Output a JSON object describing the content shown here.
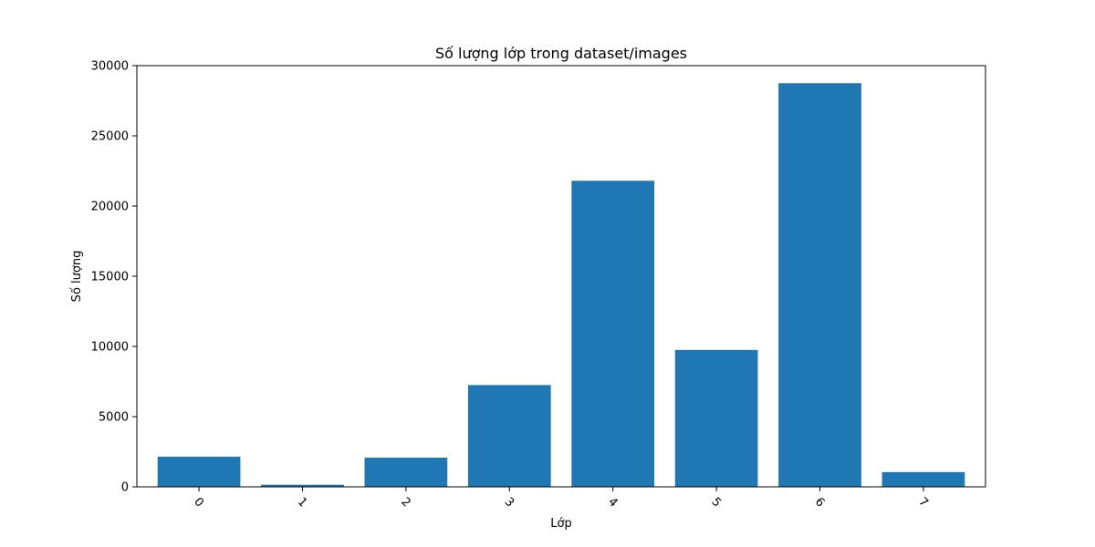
{
  "chart_data": {
    "type": "bar",
    "title": "Số lượng lớp trong dataset/images",
    "xlabel": "Lớp",
    "ylabel": "Số lượng",
    "categories": [
      "0",
      "1",
      "2",
      "3",
      "4",
      "5",
      "6",
      "7"
    ],
    "values": [
      2150,
      150,
      2080,
      7250,
      21800,
      9750,
      28750,
      1050
    ],
    "ylim": [
      0,
      30000
    ],
    "yticks": [
      0,
      5000,
      10000,
      15000,
      20000,
      25000,
      30000
    ],
    "ytick_labels": [
      "0",
      "5000",
      "10000",
      "15000",
      "20000",
      "25000",
      "30000"
    ],
    "x_tick_rotation": 45,
    "bar_color": "#1f77b4",
    "grid": false,
    "legend": "none"
  }
}
